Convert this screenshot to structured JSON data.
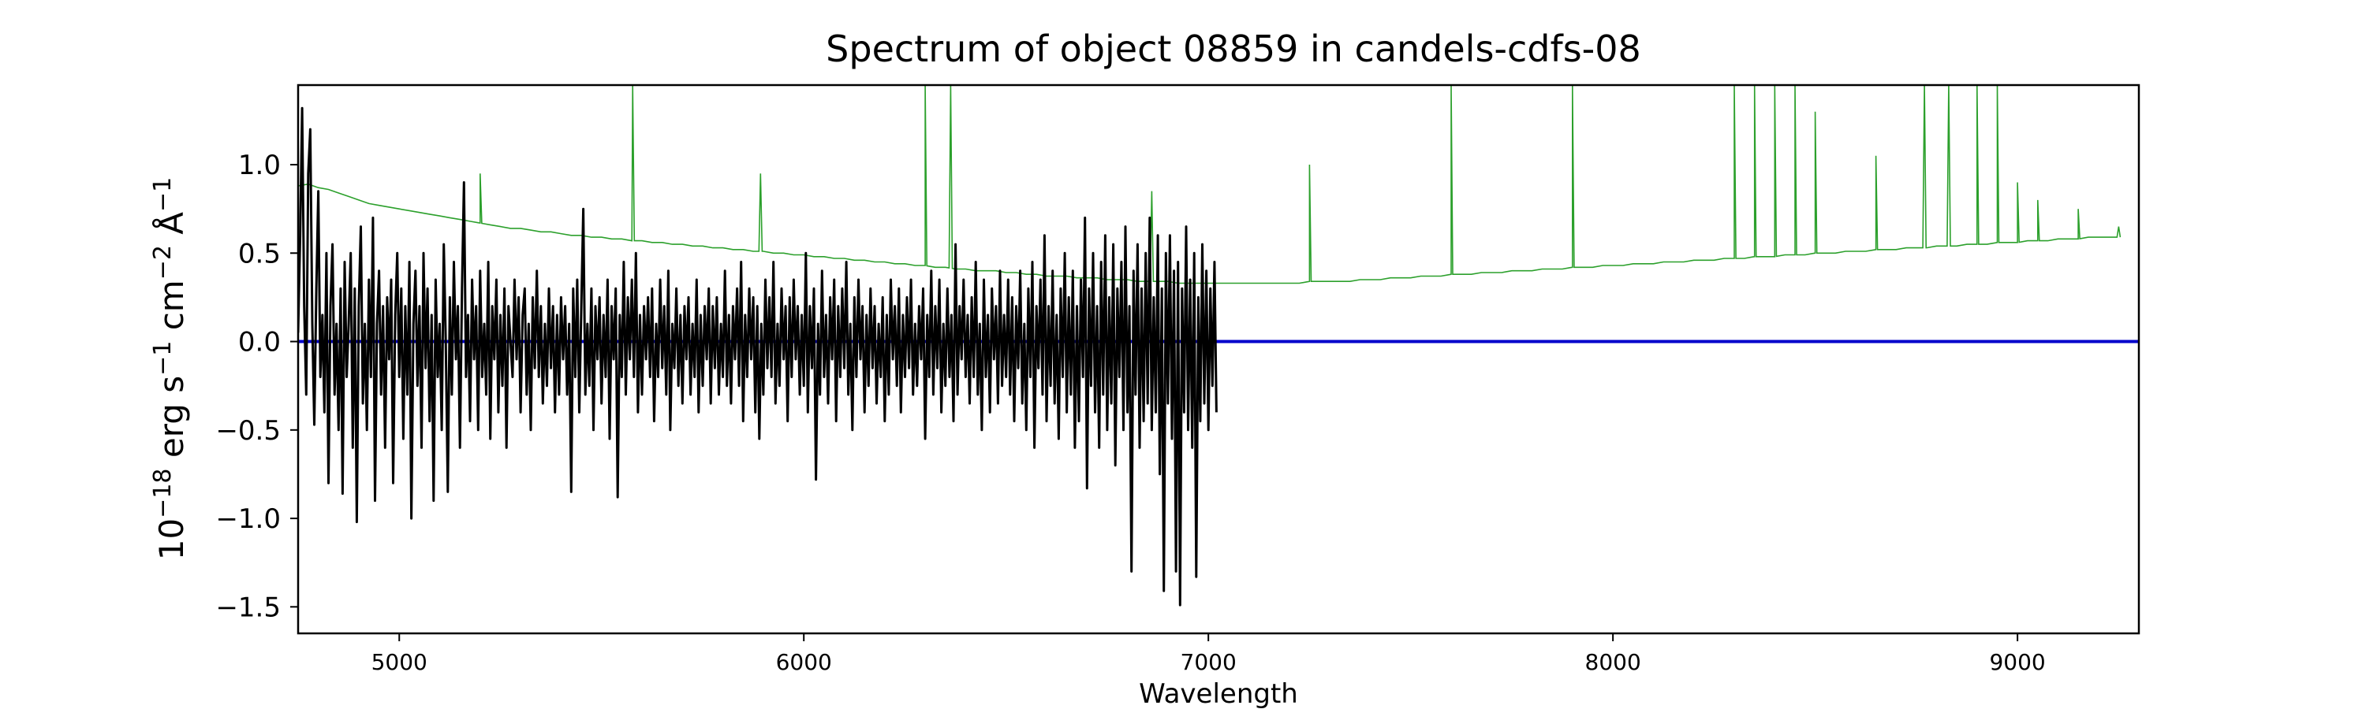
{
  "chart_data": {
    "type": "line",
    "title": "Spectrum of object 08859 in candels-cdfs-08",
    "xlabel": "Wavelength",
    "ylabel": {
      "prefix": "10",
      "prefix_sup": "−18",
      "erg": " erg s",
      "s_sup": "−1",
      "cm": " cm",
      "cm_sup": "−2",
      "ang": " Å",
      "ang_sup": "−1"
    },
    "xlim": [
      4750,
      9300
    ],
    "ylim": [
      -1.65,
      1.45
    ],
    "xticks": [
      5000,
      6000,
      7000,
      8000,
      9000
    ],
    "xtick_labels": [
      "5000",
      "6000",
      "7000",
      "8000",
      "9000"
    ],
    "yticks": [
      -1.5,
      -1.0,
      -0.5,
      0.0,
      0.5,
      1.0
    ],
    "ytick_labels": [
      "−1.5",
      "−1.0",
      "−0.5",
      "0.0",
      "0.5",
      "1.0"
    ],
    "grid": false,
    "legend": "none",
    "colors": {
      "flux": "#000000",
      "noise": "#2ca02c",
      "zero_line": "#0000cc"
    },
    "series": [
      {
        "role": "flux",
        "x_start": 4750,
        "x_step": 5,
        "values": [
          0.05,
          0.6,
          1.32,
          0.2,
          -0.3,
          0.95,
          1.2,
          0.1,
          -0.47,
          0.3,
          0.85,
          -0.2,
          0.15,
          -0.4,
          0.5,
          -0.8,
          0.2,
          0.55,
          -0.3,
          0.1,
          -0.5,
          0.3,
          -0.86,
          0.45,
          -0.2,
          0.1,
          0.5,
          -0.6,
          0.3,
          -1.02,
          0.2,
          0.65,
          -0.35,
          0.1,
          -0.5,
          0.35,
          -0.2,
          0.7,
          -0.9,
          0.1,
          0.4,
          -0.3,
          0.2,
          -0.6,
          0.25,
          -0.1,
          0.35,
          -0.8,
          0.15,
          0.5,
          -0.2,
          0.3,
          -0.55,
          0.2,
          -0.3,
          0.45,
          -1.0,
          0.1,
          0.4,
          -0.25,
          0.2,
          -0.6,
          0.5,
          -0.15,
          0.3,
          -0.45,
          0.15,
          -0.9,
          0.35,
          -0.2,
          0.1,
          -0.5,
          0.55,
          0.0,
          -0.85,
          0.25,
          -0.3,
          0.45,
          -0.1,
          0.2,
          -0.6,
          0.3,
          0.9,
          -0.2,
          0.15,
          -0.45,
          0.35,
          -0.1,
          0.2,
          -0.5,
          0.4,
          -0.2,
          0.1,
          -0.3,
          0.45,
          -0.55,
          0.2,
          -0.1,
          0.35,
          -0.4,
          0.15,
          -0.25,
          0.3,
          -0.6,
          0.2,
          0.0,
          -0.2,
          0.35,
          -0.1,
          0.25,
          -0.4,
          0.15,
          0.3,
          -0.3,
          0.1,
          -0.5,
          0.25,
          -0.15,
          0.4,
          -0.2,
          0.2,
          -0.35,
          0.1,
          -0.25,
          0.3,
          -0.15,
          0.2,
          -0.4,
          0.15,
          -0.3,
          0.25,
          -0.1,
          0.2,
          -0.3,
          0.1,
          -0.85,
          0.3,
          -0.2,
          0.35,
          -0.4,
          0.2,
          0.75,
          -0.3,
          0.1,
          -0.25,
          0.3,
          -0.5,
          0.2,
          -0.1,
          0.25,
          -0.35,
          0.15,
          -0.2,
          0.35,
          -0.55,
          0.2,
          -0.1,
          0.3,
          -0.88,
          0.15,
          -0.2,
          0.45,
          -0.3,
          0.25,
          -0.1,
          0.35,
          -0.2,
          0.5,
          -0.4,
          0.15,
          -0.3,
          0.2,
          -0.1,
          0.25,
          -0.2,
          0.3,
          -0.45,
          0.1,
          -0.2,
          0.35,
          -0.15,
          0.2,
          -0.3,
          0.4,
          -0.5,
          0.1,
          -0.15,
          0.3,
          -0.25,
          0.15,
          -0.35,
          0.2,
          -0.1,
          0.25,
          -0.3,
          0.1,
          -0.2,
          0.35,
          -0.4,
          0.15,
          -0.25,
          0.2,
          -0.1,
          0.3,
          -0.35,
          0.2,
          -0.15,
          0.25,
          -0.3,
          0.1,
          -0.2,
          0.4,
          -0.25,
          0.15,
          -0.35,
          0.2,
          -0.1,
          0.3,
          -0.25,
          0.45,
          -0.45,
          0.15,
          -0.2,
          0.3,
          -0.1,
          0.25,
          -0.4,
          0.2,
          -0.55,
          0.1,
          -0.3,
          0.35,
          -0.15,
          0.25,
          -0.2,
          0.45,
          -0.35,
          0.1,
          -0.25,
          0.3,
          -0.1,
          0.2,
          -0.45,
          0.25,
          -0.2,
          0.35,
          -0.1,
          0.2,
          -0.3,
          0.15,
          -0.25,
          0.5,
          -0.4,
          0.2,
          -0.15,
          0.3,
          -0.78,
          0.1,
          -0.3,
          0.4,
          -0.2,
          0.15,
          -0.35,
          0.25,
          -0.1,
          0.35,
          -0.45,
          0.2,
          -0.2,
          0.3,
          -0.15,
          0.45,
          -0.3,
          0.1,
          -0.5,
          0.25,
          -0.2,
          0.35,
          -0.1,
          0.2,
          -0.4,
          0.15,
          -0.25,
          0.3,
          -0.15,
          0.2,
          -0.35,
          0.1,
          -0.2,
          0.25,
          -0.45,
          0.15,
          -0.3,
          0.35,
          -0.1,
          0.2,
          -0.25,
          0.3,
          -0.4,
          0.15,
          -0.2,
          0.25,
          -0.15,
          0.35,
          -0.3,
          0.1,
          -0.25,
          0.2,
          -0.1,
          0.3,
          -0.55,
          0.15,
          -0.2,
          0.4,
          -0.3,
          0.2,
          -0.15,
          0.35,
          -0.4,
          0.1,
          -0.25,
          0.3,
          -0.2,
          0.15,
          -0.45,
          0.55,
          -0.3,
          0.2,
          -0.1,
          0.35,
          -0.2,
          0.15,
          -0.35,
          0.25,
          -0.2,
          0.45,
          -0.3,
          0.1,
          -0.5,
          0.35,
          -0.2,
          0.15,
          -0.4,
          0.3,
          -0.1,
          0.2,
          -0.35,
          0.4,
          -0.25,
          0.15,
          -0.2,
          0.35,
          -0.3,
          0.25,
          -0.45,
          0.2,
          -0.15,
          0.4,
          -0.35,
          0.1,
          -0.5,
          0.3,
          -0.2,
          0.45,
          -0.6,
          0.2,
          -0.15,
          0.35,
          -0.3,
          0.6,
          -0.45,
          0.2,
          -0.25,
          0.4,
          -0.35,
          0.15,
          -0.55,
          0.3,
          -0.2,
          0.5,
          -0.4,
          0.25,
          -0.3,
          0.4,
          -0.6,
          0.2,
          -0.45,
          0.35,
          -0.2,
          0.7,
          -0.83,
          0.3,
          -0.25,
          0.5,
          -0.4,
          0.2,
          -0.6,
          0.45,
          -0.3,
          0.6,
          -0.5,
          0.25,
          -0.35,
          0.55,
          -0.7,
          0.3,
          -0.2,
          0.45,
          -0.5,
          0.65,
          -0.4,
          0.2,
          -1.3,
          0.4,
          -0.3,
          0.55,
          -0.6,
          0.3,
          -0.45,
          0.5,
          -0.35,
          0.7,
          -0.5,
          0.25,
          -0.4,
          0.6,
          -0.75,
          0.3,
          -1.41,
          0.5,
          -0.35,
          0.6,
          -0.55,
          0.4,
          -1.3,
          0.45,
          -1.49,
          0.3,
          -0.4,
          0.65,
          -0.5,
          0.35,
          -0.6,
          0.5,
          -1.33,
          0.25,
          -0.45,
          0.55,
          -0.35,
          0.4,
          -0.5,
          0.3,
          -0.25,
          0.45,
          -0.4
        ]
      },
      {
        "role": "noise",
        "x_start": 4750,
        "x_step": 25,
        "values": [
          0.88,
          0.89,
          0.87,
          0.86,
          0.84,
          0.82,
          0.8,
          0.78,
          0.77,
          0.76,
          0.75,
          0.74,
          0.73,
          0.72,
          0.71,
          0.7,
          0.69,
          0.68,
          0.67,
          0.66,
          0.65,
          0.64,
          0.64,
          0.63,
          0.62,
          0.62,
          0.61,
          0.6,
          0.6,
          0.59,
          0.59,
          0.58,
          0.58,
          0.57,
          0.57,
          0.56,
          0.56,
          0.55,
          0.55,
          0.54,
          0.54,
          0.53,
          0.53,
          0.52,
          0.52,
          0.51,
          0.51,
          0.5,
          0.5,
          0.49,
          0.49,
          0.48,
          0.48,
          0.47,
          0.47,
          0.46,
          0.46,
          0.45,
          0.45,
          0.44,
          0.44,
          0.43,
          0.43,
          0.42,
          0.42,
          0.41,
          0.41,
          0.4,
          0.4,
          0.4,
          0.39,
          0.39,
          0.38,
          0.38,
          0.37,
          0.37,
          0.37,
          0.36,
          0.36,
          0.36,
          0.35,
          0.35,
          0.35,
          0.34,
          0.34,
          0.34,
          0.34,
          0.33,
          0.33,
          0.33,
          0.33,
          0.33,
          0.33,
          0.33,
          0.33,
          0.33,
          0.33,
          0.33,
          0.33,
          0.33,
          0.34,
          0.34,
          0.34,
          0.34,
          0.34,
          0.35,
          0.35,
          0.35,
          0.36,
          0.36,
          0.36,
          0.37,
          0.37,
          0.37,
          0.38,
          0.38,
          0.38,
          0.39,
          0.39,
          0.39,
          0.4,
          0.4,
          0.4,
          0.41,
          0.41,
          0.41,
          0.42,
          0.42,
          0.42,
          0.43,
          0.43,
          0.43,
          0.44,
          0.44,
          0.44,
          0.45,
          0.45,
          0.45,
          0.46,
          0.46,
          0.46,
          0.47,
          0.47,
          0.47,
          0.48,
          0.48,
          0.48,
          0.49,
          0.49,
          0.49,
          0.5,
          0.5,
          0.5,
          0.51,
          0.51,
          0.51,
          0.52,
          0.52,
          0.52,
          0.53,
          0.53,
          0.53,
          0.54,
          0.54,
          0.54,
          0.55,
          0.55,
          0.55,
          0.56,
          0.56,
          0.56,
          0.57,
          0.57,
          0.57,
          0.58,
          0.58,
          0.58,
          0.59,
          0.59
        ],
        "spikes": [
          [
            5200,
            0.95
          ],
          [
            5577,
            1.45
          ],
          [
            5893,
            0.95
          ],
          [
            6300,
            1.45
          ],
          [
            6363,
            1.45
          ],
          [
            6860,
            0.85
          ],
          [
            7250,
            1.0
          ],
          [
            7600,
            1.45
          ],
          [
            7900,
            1.45
          ],
          [
            8300,
            1.45
          ],
          [
            8350,
            1.45
          ],
          [
            8400,
            1.45
          ],
          [
            8450,
            1.45
          ],
          [
            8500,
            1.3
          ],
          [
            8650,
            1.05
          ],
          [
            8770,
            1.45
          ],
          [
            8830,
            1.45
          ],
          [
            8900,
            1.45
          ],
          [
            8950,
            1.45
          ],
          [
            9000,
            0.9
          ],
          [
            9050,
            0.8
          ],
          [
            9150,
            0.75
          ],
          [
            9250,
            0.65
          ]
        ]
      },
      {
        "role": "zero",
        "value": 0.0
      }
    ]
  }
}
